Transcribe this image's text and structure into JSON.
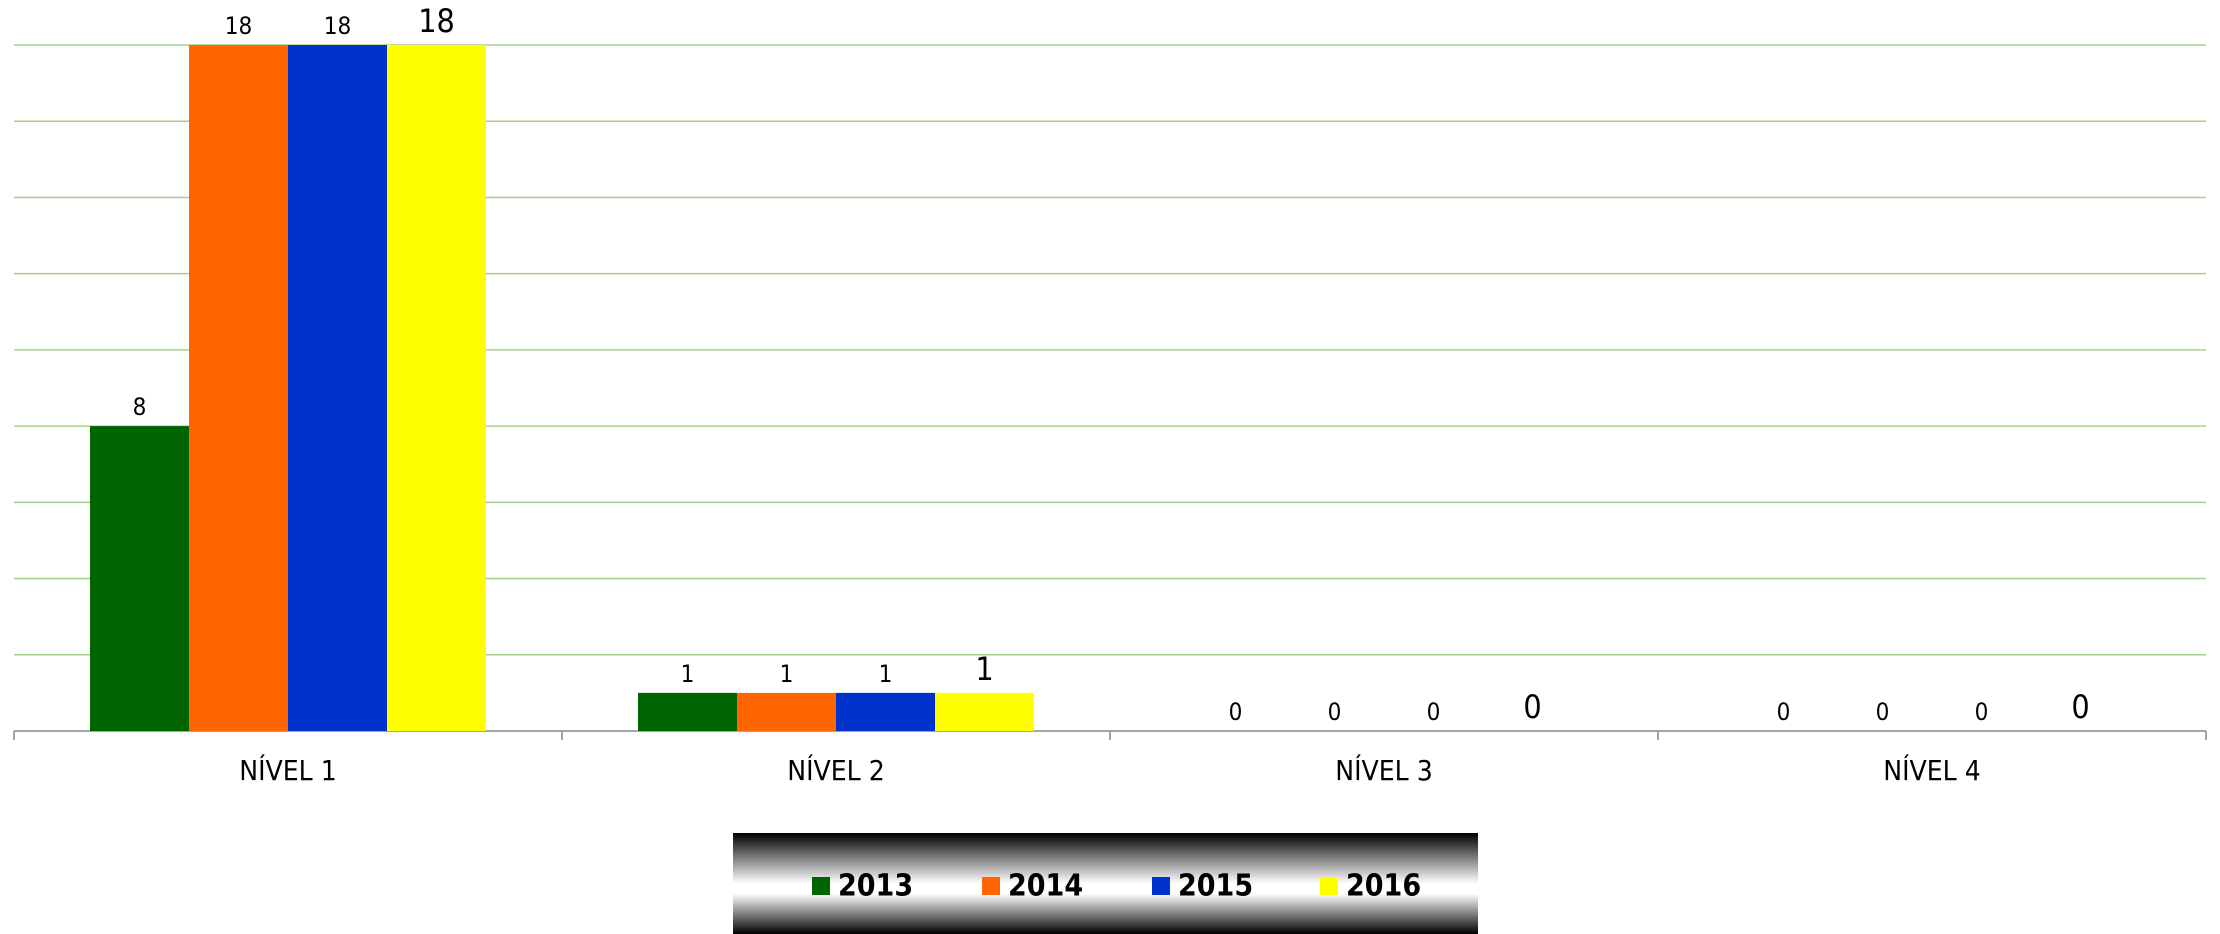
{
  "chart_data": {
    "type": "bar",
    "categories": [
      "NÍVEL 1",
      "NÍVEL 2",
      "NÍVEL 3",
      "NÍVEL 4"
    ],
    "series": [
      {
        "name": "2013",
        "color": "#006400",
        "values": [
          8,
          1,
          0,
          0
        ]
      },
      {
        "name": "2014",
        "color": "#ff6600",
        "values": [
          18,
          1,
          0,
          0
        ]
      },
      {
        "name": "2015",
        "color": "#0033cc",
        "values": [
          18,
          1,
          0,
          0
        ]
      },
      {
        "name": "2016",
        "color": "#ffff00",
        "values": [
          18,
          1,
          0,
          0
        ]
      }
    ],
    "ylim": [
      0,
      18
    ],
    "yticks": [
      0,
      2,
      4,
      6,
      8,
      10,
      12,
      14,
      16,
      18
    ],
    "grid": true,
    "legend": "bottom"
  }
}
